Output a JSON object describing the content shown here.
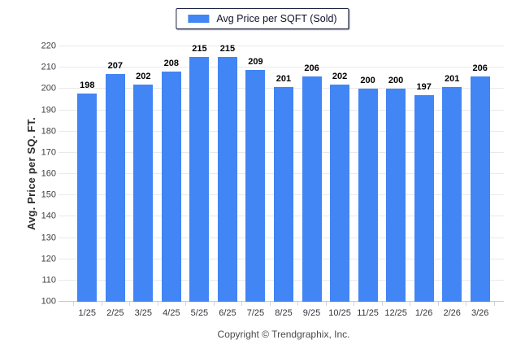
{
  "legend": {
    "label": "Avg Price per SQFT (Sold)",
    "swatch_color": "#4285F4"
  },
  "chart_data": {
    "type": "bar",
    "title": "",
    "series_name": "Avg Price per SQFT (Sold)",
    "categories": [
      "1/25",
      "2/25",
      "3/25",
      "4/25",
      "5/25",
      "6/25",
      "7/25",
      "8/25",
      "9/25",
      "10/25",
      "11/25",
      "12/25",
      "1/26",
      "2/26",
      "3/26"
    ],
    "values": [
      198,
      207,
      202,
      208,
      215,
      215,
      209,
      201,
      206,
      202,
      200,
      200,
      197,
      201,
      206
    ],
    "xlabel": "",
    "ylabel": "Avg. Price per SQ. FT.",
    "ylim": [
      100,
      220
    ],
    "ytick_step": 10,
    "bar_color": "#4285F4",
    "grid": true,
    "legend_position": "top"
  },
  "footer": {
    "copyright": "Copyright © Trendgraphix, Inc."
  },
  "colors": {
    "bar": "#4285F4",
    "gridline": "#e9e9e9",
    "baseline": "#c9c9c9",
    "tick_text": "#3f3f47",
    "legend_border": "#1c2340"
  }
}
